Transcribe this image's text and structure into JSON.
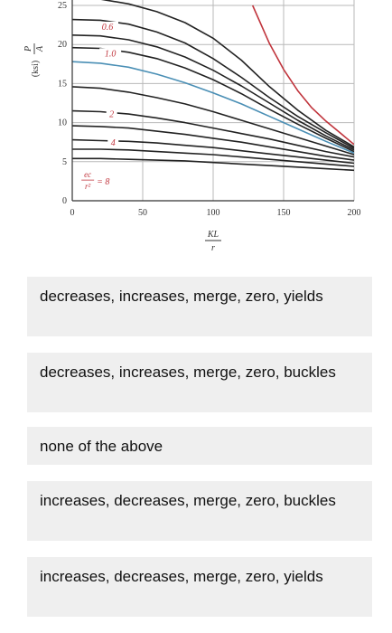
{
  "chart_data": {
    "type": "line",
    "xlabel_num": "KL",
    "xlabel_den": "r",
    "ylabel_num": "P",
    "ylabel_den": "A",
    "ylabel_unit": "(ksi)",
    "xlim": [
      0,
      200
    ],
    "ylim": [
      0,
      25
    ],
    "x_ticks": [
      "0",
      "50",
      "100",
      "150",
      "200"
    ],
    "y_ticks": [
      "0",
      "5",
      "10",
      "15",
      "20",
      "25"
    ],
    "grid": true,
    "param_label_lhs_num": "ec",
    "param_label_lhs_den": "r²",
    "param_label_eq": "= 8",
    "series": [
      {
        "label": "",
        "color": "#c0343c",
        "x": [
          128,
          140,
          150,
          160,
          170,
          180,
          190,
          200
        ],
        "y": [
          25,
          20.1,
          16.8,
          14.1,
          11.9,
          10.2,
          8.7,
          7.2
        ]
      },
      {
        "label": "",
        "color": "#222222",
        "x": [
          0,
          20,
          40,
          60,
          80,
          100,
          120,
          140,
          160,
          180,
          200
        ],
        "y": [
          26,
          25.8,
          25.2,
          24.2,
          22.8,
          20.8,
          18,
          14.6,
          11.6,
          9,
          6.9
        ]
      },
      {
        "label": "0.6",
        "color": "#222222",
        "x": [
          0,
          20,
          40,
          60,
          80,
          100,
          120,
          140,
          160,
          180,
          200
        ],
        "y": [
          23.2,
          23.1,
          22.6,
          21.6,
          20.2,
          18.2,
          15.8,
          13.2,
          10.8,
          8.7,
          6.7
        ]
      },
      {
        "label": "",
        "color": "#222222",
        "x": [
          0,
          20,
          40,
          60,
          80,
          100,
          120,
          140,
          160,
          180,
          200
        ],
        "y": [
          21.2,
          21.1,
          20.6,
          19.7,
          18.4,
          16.7,
          14.7,
          12.5,
          10.3,
          8.3,
          6.5
        ]
      },
      {
        "label": "1.0",
        "color": "#222222",
        "x": [
          0,
          20,
          40,
          60,
          80,
          100,
          120,
          140,
          160,
          180,
          200
        ],
        "y": [
          19.6,
          19.5,
          19,
          18.2,
          17,
          15.5,
          13.7,
          11.7,
          9.8,
          8,
          6.3
        ]
      },
      {
        "label": "",
        "color": "#4a8fb5",
        "x": [
          0,
          20,
          40,
          60,
          80,
          100,
          120,
          140,
          160,
          180,
          200
        ],
        "y": [
          17.8,
          17.6,
          17.1,
          16.2,
          15.1,
          13.8,
          12.4,
          10.8,
          9.2,
          7.6,
          6.1
        ]
      },
      {
        "label": "",
        "color": "#222222",
        "x": [
          0,
          20,
          40,
          60,
          80,
          100,
          120,
          140,
          160,
          180,
          200
        ],
        "y": [
          14.6,
          14.4,
          13.9,
          13.2,
          12.4,
          11.4,
          10.3,
          9.2,
          8.1,
          7,
          5.9
        ]
      },
      {
        "label": "2",
        "color": "#222222",
        "x": [
          0,
          20,
          40,
          60,
          80,
          100,
          120,
          140,
          160,
          180,
          200
        ],
        "y": [
          11.5,
          11.4,
          11.1,
          10.6,
          10,
          9.3,
          8.6,
          7.9,
          7.1,
          6.3,
          5.6
        ]
      },
      {
        "label": "",
        "color": "#222222",
        "x": [
          0,
          20,
          40,
          60,
          80,
          100,
          120,
          140,
          160,
          180,
          200
        ],
        "y": [
          9.6,
          9.5,
          9.3,
          8.9,
          8.5,
          8,
          7.5,
          6.9,
          6.3,
          5.7,
          5.2
        ]
      },
      {
        "label": "4",
        "color": "#222222",
        "x": [
          0,
          20,
          40,
          60,
          80,
          100,
          120,
          140,
          160,
          180,
          200
        ],
        "y": [
          7.8,
          7.7,
          7.6,
          7.4,
          7.1,
          6.8,
          6.4,
          6,
          5.6,
          5.2,
          4.8
        ]
      },
      {
        "label": "",
        "color": "#222222",
        "x": [
          0,
          20,
          40,
          60,
          80,
          100,
          120,
          140,
          160,
          180,
          200
        ],
        "y": [
          6.6,
          6.6,
          6.5,
          6.3,
          6.1,
          5.9,
          5.6,
          5.3,
          5,
          4.7,
          4.4
        ]
      },
      {
        "label": "8",
        "color": "#222222",
        "x": [
          0,
          20,
          40,
          60,
          80,
          100,
          120,
          140,
          160,
          180,
          200
        ],
        "y": [
          5.4,
          5.4,
          5.3,
          5.2,
          5.1,
          4.9,
          4.7,
          4.5,
          4.3,
          4.1,
          3.9
        ]
      }
    ]
  },
  "options": [
    "decreases, increases, merge, zero, yields",
    "decreases, increases, merge, zero, buckles",
    "none of the above",
    "increases, decreases, merge, zero, buckles",
    "increases, decreases, merge, zero, yields"
  ]
}
